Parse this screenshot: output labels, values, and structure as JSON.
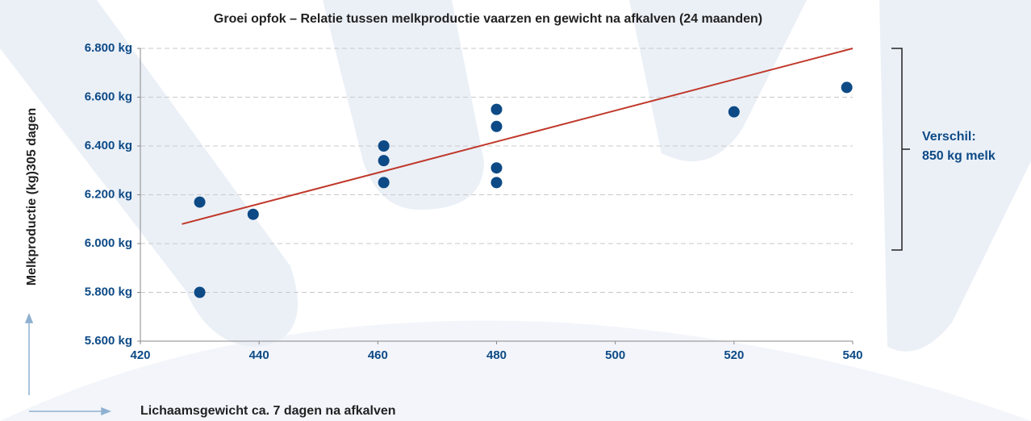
{
  "chart_data": {
    "type": "scatter",
    "title": "Groei opfok – Relatie tussen melkproductie vaarzen en gewicht na afkalven (24 maanden)",
    "x_label": "Lichaamsgewicht ca. 7 dagen na afkalven",
    "y_label": "Melkproductie (kg)305 dagen",
    "xlim": [
      420,
      540
    ],
    "xticks": [
      420,
      440,
      460,
      480,
      500,
      520,
      540
    ],
    "ylim": [
      5600,
      6800
    ],
    "yticks": [
      {
        "value": 5600,
        "label": "5.600 kg"
      },
      {
        "value": 5800,
        "label": "5.800 kg"
      },
      {
        "value": 6000,
        "label": "6.000 kg"
      },
      {
        "value": 6200,
        "label": "6.200 kg"
      },
      {
        "value": 6400,
        "label": "6.400 kg"
      },
      {
        "value": 6600,
        "label": "6.600 kg"
      },
      {
        "value": 6800,
        "label": "6.800 kg"
      }
    ],
    "grid": true,
    "series": [
      {
        "color": "#0d4a86",
        "x": [
          430,
          430,
          439,
          461,
          461,
          461,
          480,
          480,
          480,
          480,
          520,
          539
        ],
        "values": [
          6170,
          5800,
          6120,
          6400,
          6340,
          6250,
          6550,
          6480,
          6310,
          6250,
          6540,
          6640
        ]
      }
    ],
    "trendline": {
      "color": "#c0392b",
      "x": [
        427,
        540
      ],
      "values": [
        6080,
        6800
      ]
    },
    "annotation": [
      "Verschil:",
      "850 kg melk"
    ]
  }
}
